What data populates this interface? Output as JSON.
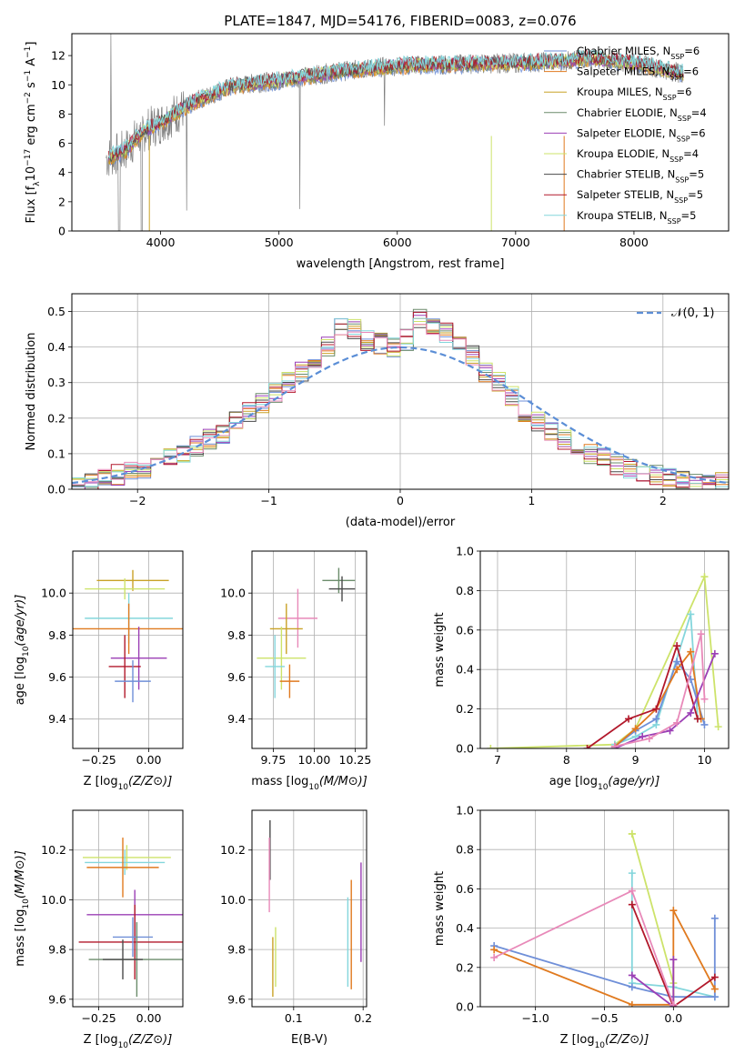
{
  "colors": {
    "series": [
      "#6f8fd8",
      "#e07a1f",
      "#c9a227",
      "#6b8c6b",
      "#9b3fb5",
      "#cde36a",
      "#4a4a4a",
      "#b2182b",
      "#84d6dc",
      "#e889b9"
    ],
    "spectrum": "#808080",
    "normal": "#5b8ed6"
  },
  "chart_data": [
    {
      "name": "spectrum",
      "type": "line",
      "title": "PLATE=1847, MJD=54176, FIBERID=0083, z=0.076",
      "xlabel": "wavelength [Angstrom, rest frame]",
      "ylabel": "Flux [f_λ 10^-17 erg cm^-2 s^-1 A^-1]",
      "xlim": [
        3250,
        8800
      ],
      "ylim": [
        0,
        13.5
      ],
      "xticks": [
        "4000",
        "5000",
        "6000",
        "7000",
        "8000"
      ],
      "yticks": [
        "0",
        "2",
        "4",
        "6",
        "8",
        "10",
        "12"
      ],
      "legend_position": "upper-right",
      "legend": [
        "Chabrier MILES, N_SSP=6",
        "Salpeter MILES, N_SSP=6",
        "Kroupa MILES, N_SSP=6",
        "Chabrier ELODIE, N_SSP=4",
        "Salpeter ELODIE, N_SSP=6",
        "Kroupa ELODIE, N_SSP=4",
        "Chabrier STELIB, N_SSP=5",
        "Salpeter STELIB, N_SSP=5",
        "Kroupa STELIB, N_SSP=5"
      ],
      "continuum": {
        "x": [
          3550,
          3700,
          3850,
          4000,
          4300,
          4600,
          5000,
          5500,
          6000,
          6500,
          7000,
          7400,
          7600,
          8000,
          8400
        ],
        "y": [
          5.0,
          5.5,
          6.8,
          7.4,
          8.9,
          9.9,
          10.3,
          10.9,
          11.3,
          11.4,
          11.5,
          11.6,
          11.8,
          11.5,
          10.8
        ]
      }
    },
    {
      "name": "residuals",
      "type": "histogram",
      "xlabel": "(data-model)/error",
      "ylabel": "Normed distribution",
      "xlim": [
        -2.5,
        2.5
      ],
      "ylim": [
        0,
        0.55
      ],
      "xticks": [
        "−2",
        "−1",
        "0",
        "1",
        "2"
      ],
      "yticks": [
        "0.0",
        "0.1",
        "0.2",
        "0.3",
        "0.4",
        "0.5"
      ],
      "legend": [
        "𝒩(0, 1)"
      ],
      "bin_edges_start": -2.5,
      "bin_width": 0.1,
      "hist": [
        0.01,
        0.02,
        0.03,
        0.04,
        0.05,
        0.06,
        0.07,
        0.09,
        0.1,
        0.12,
        0.14,
        0.15,
        0.19,
        0.22,
        0.24,
        0.27,
        0.3,
        0.33,
        0.35,
        0.4,
        0.46,
        0.45,
        0.42,
        0.41,
        0.4,
        0.42,
        0.48,
        0.45,
        0.44,
        0.4,
        0.38,
        0.33,
        0.3,
        0.26,
        0.22,
        0.19,
        0.16,
        0.14,
        0.12,
        0.1,
        0.09,
        0.07,
        0.06,
        0.05,
        0.04,
        0.03,
        0.03,
        0.02,
        0.02,
        0.02
      ]
    },
    {
      "name": "age-vs-Z",
      "type": "errorbar",
      "xlabel": "Z [log10(Z/Z⊙)]",
      "ylabel": "age [log10(age/yr)]",
      "xlim": [
        -0.38,
        0.17
      ],
      "ylim": [
        9.26,
        10.2
      ],
      "xticks": [
        "−0.25",
        "0.00"
      ],
      "yticks": [
        "9.4",
        "9.6",
        "9.8",
        "10.0"
      ],
      "points": [
        {
          "x": -0.08,
          "y": 10.06,
          "xe": 0.18,
          "ye": 0.05
        },
        {
          "x": -0.12,
          "y": 10.02,
          "xe": 0.2,
          "ye": 0.05
        },
        {
          "x": -0.1,
          "y": 9.88,
          "xe": 0.22,
          "ye": 0.12
        },
        {
          "x": -0.1,
          "y": 9.83,
          "xe": 0.28,
          "ye": 0.12
        },
        {
          "x": -0.05,
          "y": 9.69,
          "xe": 0.14,
          "ye": 0.15
        },
        {
          "x": -0.12,
          "y": 9.65,
          "xe": 0.08,
          "ye": 0.15
        },
        {
          "x": -0.08,
          "y": 9.58,
          "xe": 0.09,
          "ye": 0.1
        }
      ]
    },
    {
      "name": "age-vs-mass",
      "type": "errorbar",
      "xlabel": "mass [log10(M/M⊙)]",
      "ylabel": "",
      "xlim": [
        9.62,
        10.32
      ],
      "ylim": [
        9.26,
        10.2
      ],
      "xticks": [
        "9.75",
        "10.00",
        "10.25"
      ],
      "yticks": [
        "9.4",
        "9.6",
        "9.8",
        "10.0"
      ],
      "points": [
        {
          "x": 10.15,
          "y": 10.06,
          "xe": 0.1,
          "ye": 0.06
        },
        {
          "x": 10.17,
          "y": 10.02,
          "xe": 0.08,
          "ye": 0.06
        },
        {
          "x": 9.9,
          "y": 9.88,
          "xe": 0.12,
          "ye": 0.14
        },
        {
          "x": 9.83,
          "y": 9.83,
          "xe": 0.1,
          "ye": 0.12
        },
        {
          "x": 9.8,
          "y": 9.69,
          "xe": 0.15,
          "ye": 0.15
        },
        {
          "x": 9.76,
          "y": 9.65,
          "xe": 0.06,
          "ye": 0.15
        },
        {
          "x": 9.85,
          "y": 9.58,
          "xe": 0.06,
          "ye": 0.08
        }
      ]
    },
    {
      "name": "mass-weight-vs-age",
      "type": "line",
      "xlabel": "age [log10(age/yr)]",
      "ylabel": "mass weight",
      "xlim": [
        6.75,
        10.35
      ],
      "ylim": [
        0,
        1.0
      ],
      "xticks": [
        "7",
        "8",
        "9",
        "10"
      ],
      "yticks": [
        "0.0",
        "0.2",
        "0.4",
        "0.6",
        "0.8",
        "1.0"
      ],
      "series": [
        {
          "color": "#cde36a",
          "x": [
            6.9,
            8.7,
            9.0,
            10.0,
            10.2
          ],
          "y": [
            0.0,
            0.02,
            0.1,
            0.87,
            0.11
          ]
        },
        {
          "color": "#84d6dc",
          "x": [
            8.7,
            9.0,
            9.3,
            9.8,
            9.9
          ],
          "y": [
            0.02,
            0.06,
            0.12,
            0.68,
            0.15
          ]
        },
        {
          "color": "#6f8fd8",
          "x": [
            8.7,
            9.0,
            9.3,
            9.6,
            9.8,
            10.0
          ],
          "y": [
            0.01,
            0.09,
            0.15,
            0.44,
            0.35,
            0.12
          ]
        },
        {
          "color": "#e07a1f",
          "x": [
            8.7,
            9.0,
            9.3,
            9.6,
            9.8,
            9.95
          ],
          "y": [
            0.01,
            0.1,
            0.2,
            0.4,
            0.49,
            0.15
          ]
        },
        {
          "color": "#b2182b",
          "x": [
            8.3,
            8.9,
            9.3,
            9.6,
            9.9
          ],
          "y": [
            0.0,
            0.15,
            0.2,
            0.52,
            0.15
          ]
        },
        {
          "color": "#9b3fb5",
          "x": [
            8.7,
            9.1,
            9.5,
            9.8,
            10.15
          ],
          "y": [
            0.0,
            0.06,
            0.09,
            0.18,
            0.48
          ]
        },
        {
          "color": "#e889b9",
          "x": [
            8.7,
            9.2,
            9.6,
            9.95,
            10.0
          ],
          "y": [
            0.01,
            0.05,
            0.13,
            0.58,
            0.25
          ]
        }
      ]
    },
    {
      "name": "mass-vs-Z",
      "type": "errorbar",
      "xlabel": "Z [log10(Z/Z⊙)]",
      "ylabel": "mass [log10(M/M⊙)]",
      "xlim": [
        -0.38,
        0.17
      ],
      "ylim": [
        9.57,
        10.36
      ],
      "xticks": [
        "−0.25",
        "0.00"
      ],
      "yticks": [
        "9.6",
        "9.8",
        "10.0",
        "10.2"
      ],
      "points": [
        {
          "x": -0.11,
          "y": 10.17,
          "xe": 0.22,
          "ye": 0.05
        },
        {
          "x": -0.12,
          "y": 10.15,
          "xe": 0.2,
          "ye": 0.05
        },
        {
          "x": -0.13,
          "y": 10.13,
          "xe": 0.18,
          "ye": 0.12
        },
        {
          "x": -0.07,
          "y": 9.94,
          "xe": 0.24,
          "ye": 0.1
        },
        {
          "x": -0.07,
          "y": 9.83,
          "xe": 0.28,
          "ye": 0.15
        },
        {
          "x": -0.08,
          "y": 9.85,
          "xe": 0.1,
          "ye": 0.08
        },
        {
          "x": -0.06,
          "y": 9.76,
          "xe": 0.24,
          "ye": 0.15
        },
        {
          "x": -0.13,
          "y": 9.76,
          "xe": 0.1,
          "ye": 0.08
        }
      ]
    },
    {
      "name": "mass-vs-EBV",
      "type": "errorbar",
      "xlabel": "E(B-V)",
      "ylabel": "",
      "xlim": [
        0.04,
        0.205
      ],
      "ylim": [
        9.57,
        10.36
      ],
      "xticks": [
        "0.1",
        "0.2"
      ],
      "yticks": [
        "9.6",
        "9.8",
        "10.0",
        "10.2"
      ],
      "points": [
        {
          "x": 0.066,
          "y": 10.2,
          "xe": 0,
          "ye": 0.12
        },
        {
          "x": 0.065,
          "y": 10.1,
          "xe": 0,
          "ye": 0.15
        },
        {
          "x": 0.07,
          "y": 9.73,
          "xe": 0,
          "ye": 0.12
        },
        {
          "x": 0.074,
          "y": 9.77,
          "xe": 0,
          "ye": 0.12
        },
        {
          "x": 0.178,
          "y": 9.83,
          "xe": 0,
          "ye": 0.18
        },
        {
          "x": 0.183,
          "y": 9.86,
          "xe": 0,
          "ye": 0.22
        },
        {
          "x": 0.197,
          "y": 9.95,
          "xe": 0,
          "ye": 0.2
        }
      ]
    },
    {
      "name": "mass-weight-vs-Z",
      "type": "line",
      "xlabel": "Z [log10(Z/Z⊙)]",
      "ylabel": "mass weight",
      "xlim": [
        -1.4,
        0.4
      ],
      "ylim": [
        0,
        1.0
      ],
      "xticks": [
        "−1.0",
        "−0.5",
        "0.0"
      ],
      "yticks": [
        "0.0",
        "0.2",
        "0.4",
        "0.6",
        "0.8",
        "1.0"
      ],
      "series": [
        {
          "color": "#cde36a",
          "x": [
            -0.3,
            -0.3,
            0.0,
            0.0
          ],
          "y": [
            0.88,
            0.88,
            0.12,
            0.05
          ]
        },
        {
          "color": "#84d6dc",
          "x": [
            -0.3,
            -0.3,
            0.0,
            0.3
          ],
          "y": [
            0.68,
            0.12,
            0.1,
            0.05
          ]
        },
        {
          "color": "#6f8fd8",
          "x": [
            -1.3,
            -0.3,
            0.0,
            0.3,
            0.3
          ],
          "y": [
            0.31,
            0.1,
            0.05,
            0.05,
            0.45
          ]
        },
        {
          "color": "#e07a1f",
          "x": [
            -1.3,
            -0.3,
            0.0,
            0.0,
            0.3
          ],
          "y": [
            0.29,
            0.01,
            0.01,
            0.49,
            0.09
          ]
        },
        {
          "color": "#b2182b",
          "x": [
            -0.3,
            0.0,
            0.3
          ],
          "y": [
            0.52,
            0.0,
            0.15
          ]
        },
        {
          "color": "#9b3fb5",
          "x": [
            -0.3,
            0.0,
            0.0
          ],
          "y": [
            0.16,
            0.0,
            0.24
          ]
        },
        {
          "color": "#e889b9",
          "x": [
            -1.3,
            -0.3,
            0.0
          ],
          "y": [
            0.25,
            0.59,
            0.01
          ]
        }
      ]
    }
  ]
}
